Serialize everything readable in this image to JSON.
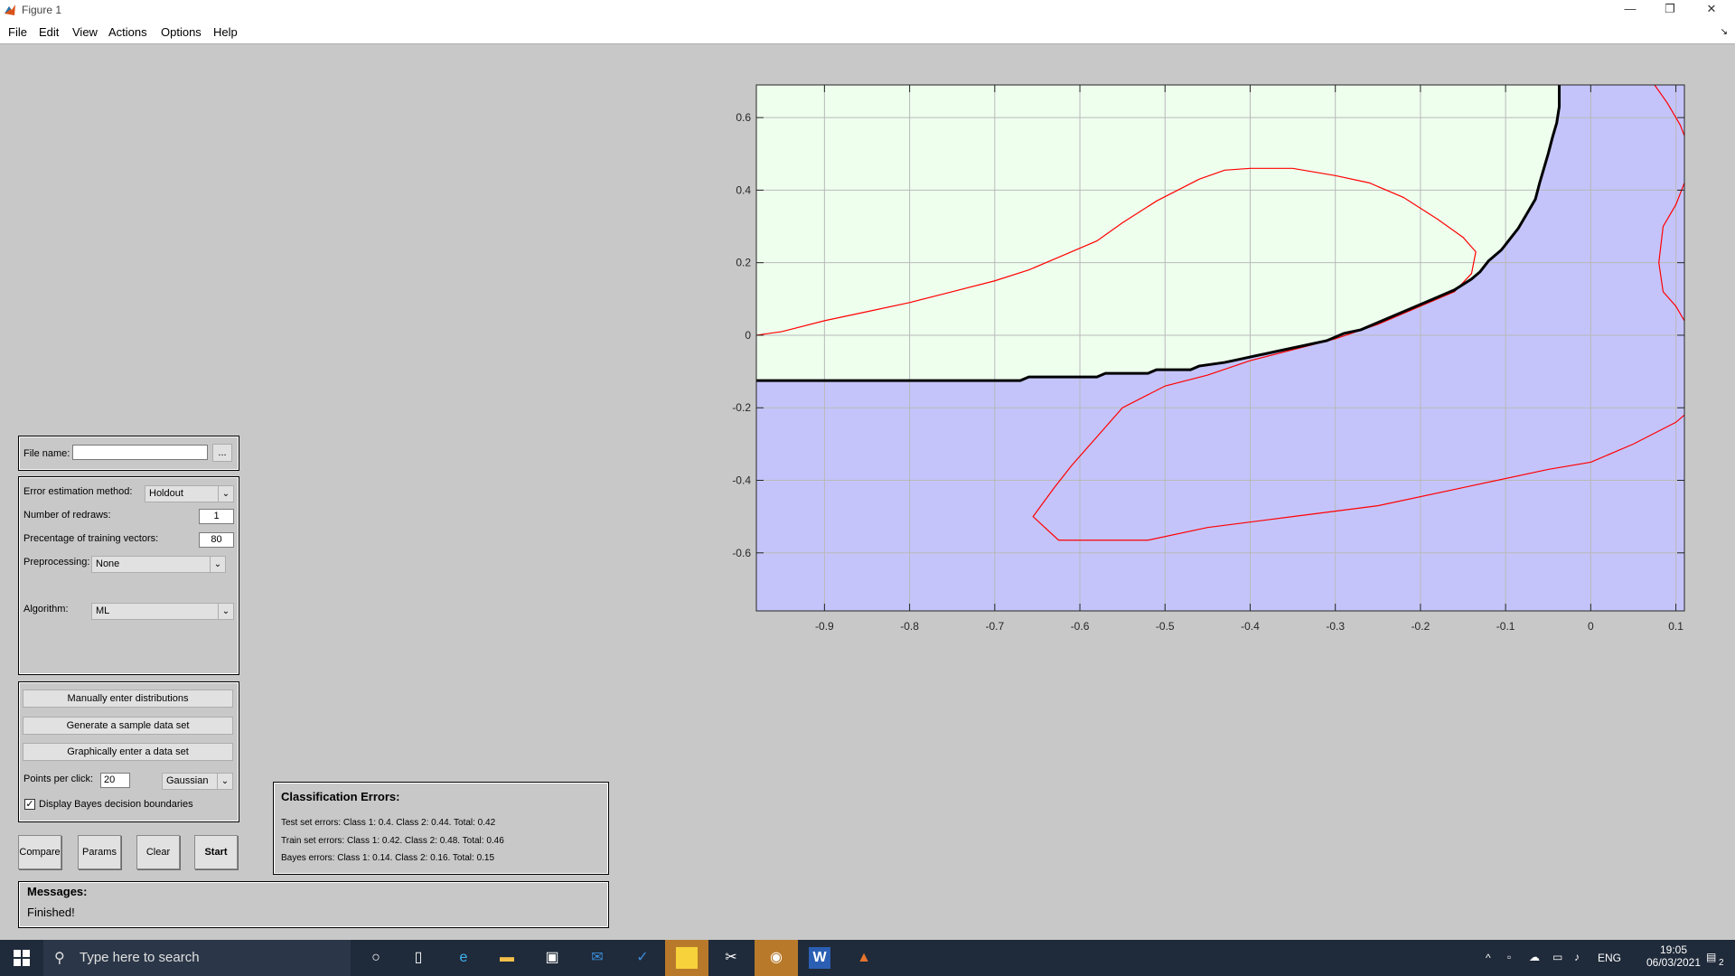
{
  "window": {
    "title": "Figure 1",
    "minimize": "—",
    "restore": "❐",
    "close": "✕"
  },
  "menu": {
    "items": [
      "File",
      "Edit",
      "View",
      "Actions",
      "Options",
      "Help"
    ],
    "grip": "↘"
  },
  "file_panel": {
    "label": "File name:",
    "value": "",
    "browse": "..."
  },
  "settings": {
    "error_method_label": "Error estimation method:",
    "error_method_value": "Holdout",
    "redraws_label": "Number of redraws:",
    "redraws_value": "1",
    "training_label": "Precentage of training vectors:",
    "training_value": "80",
    "preprocessing_label": "Preprocessing:",
    "preprocessing_value": "None",
    "algorithm_label": "Algorithm:",
    "algorithm_value": "ML"
  },
  "data_panel": {
    "manual_btn": "Manually enter distributions",
    "generate_btn": "Generate a sample data set",
    "graphical_btn": "Graphically enter a data set",
    "points_label": "Points per click:",
    "points_value": "20",
    "dist_value": "Gaussian",
    "bayes_label": "Display Bayes decision boundaries",
    "bayes_checked": true
  },
  "action_buttons": {
    "compare": "Compare",
    "params": "Params",
    "clear": "Clear",
    "start": "Start"
  },
  "errors": {
    "title": "Classification Errors:",
    "test": "Test set errors: Class 1: 0.4. Class 2: 0.44. Total: 0.42",
    "train": "Train set errors: Class 1: 0.42. Class 2: 0.48. Total: 0.46",
    "bayes": "Bayes errors: Class 1: 0.14. Class 2: 0.16. Total: 0.15"
  },
  "messages": {
    "title": "Messages:",
    "text": "Finished!"
  },
  "chart_data": {
    "type": "decision-region plot",
    "xlim": [
      -0.98,
      0.11
    ],
    "ylim": [
      -0.76,
      0.69
    ],
    "xticks": [
      -0.9,
      -0.8,
      -0.7,
      -0.6,
      -0.5,
      -0.4,
      -0.3,
      -0.2,
      -0.1,
      0,
      0.1
    ],
    "yticks": [
      0.6,
      0.4,
      0.2,
      0,
      -0.2,
      -0.4,
      -0.6
    ],
    "xtick_labels": [
      "-0.9",
      "-0.8",
      "-0.7",
      "-0.6",
      "-0.5",
      "-0.4",
      "-0.3",
      "-0.2",
      "-0.1",
      "0",
      "0.1"
    ],
    "ytick_labels": [
      "0.6",
      "0.4",
      "0.2",
      "0",
      "-0.2",
      "-0.4",
      "-0.6"
    ],
    "grid": true,
    "region_colors": {
      "class1": "#eeffee",
      "class2": "#c4c4fb"
    },
    "decision_boundary": {
      "color": "#000000",
      "points": [
        [
          -0.98,
          -0.125
        ],
        [
          -0.67,
          -0.125
        ],
        [
          -0.66,
          -0.115
        ],
        [
          -0.58,
          -0.115
        ],
        [
          -0.57,
          -0.105
        ],
        [
          -0.52,
          -0.105
        ],
        [
          -0.51,
          -0.095
        ],
        [
          -0.47,
          -0.095
        ],
        [
          -0.46,
          -0.085
        ],
        [
          -0.43,
          -0.075
        ],
        [
          -0.41,
          -0.065
        ],
        [
          -0.39,
          -0.055
        ],
        [
          -0.37,
          -0.045
        ],
        [
          -0.35,
          -0.035
        ],
        [
          -0.33,
          -0.025
        ],
        [
          -0.31,
          -0.015
        ],
        [
          -0.29,
          0.005
        ],
        [
          -0.27,
          0.015
        ],
        [
          -0.25,
          0.035
        ],
        [
          -0.22,
          0.065
        ],
        [
          -0.19,
          0.095
        ],
        [
          -0.16,
          0.125
        ],
        [
          -0.14,
          0.155
        ],
        [
          -0.13,
          0.175
        ],
        [
          -0.12,
          0.205
        ],
        [
          -0.105,
          0.235
        ],
        [
          -0.095,
          0.265
        ],
        [
          -0.085,
          0.295
        ],
        [
          -0.075,
          0.335
        ],
        [
          -0.065,
          0.375
        ],
        [
          -0.06,
          0.42
        ],
        [
          -0.055,
          0.46
        ],
        [
          -0.05,
          0.5
        ],
        [
          -0.045,
          0.545
        ],
        [
          -0.04,
          0.585
        ],
        [
          -0.037,
          0.63
        ],
        [
          -0.037,
          0.69
        ]
      ]
    },
    "bayes_boundaries": {
      "color": "#ff0000",
      "curves": [
        [
          [
            -0.98,
            0.0
          ],
          [
            -0.95,
            0.01
          ],
          [
            -0.9,
            0.04
          ],
          [
            -0.85,
            0.065
          ],
          [
            -0.8,
            0.09
          ],
          [
            -0.75,
            0.12
          ],
          [
            -0.7,
            0.15
          ],
          [
            -0.66,
            0.18
          ],
          [
            -0.62,
            0.22
          ],
          [
            -0.58,
            0.26
          ],
          [
            -0.55,
            0.31
          ],
          [
            -0.51,
            0.37
          ],
          [
            -0.46,
            0.43
          ],
          [
            -0.43,
            0.455
          ],
          [
            -0.4,
            0.46
          ],
          [
            -0.35,
            0.46
          ],
          [
            -0.3,
            0.44
          ],
          [
            -0.26,
            0.42
          ],
          [
            -0.22,
            0.38
          ],
          [
            -0.18,
            0.32
          ],
          [
            -0.15,
            0.27
          ],
          [
            -0.135,
            0.23
          ],
          [
            -0.14,
            0.17
          ],
          [
            -0.16,
            0.12
          ],
          [
            -0.2,
            0.08
          ],
          [
            -0.25,
            0.03
          ],
          [
            -0.3,
            -0.01
          ],
          [
            -0.35,
            -0.04
          ],
          [
            -0.4,
            -0.07
          ],
          [
            -0.45,
            -0.11
          ],
          [
            -0.5,
            -0.14
          ],
          [
            -0.55,
            -0.2
          ],
          [
            -0.58,
            -0.28
          ],
          [
            -0.61,
            -0.36
          ],
          [
            -0.63,
            -0.42
          ],
          [
            -0.655,
            -0.5
          ],
          [
            -0.625,
            -0.565
          ],
          [
            -0.52,
            -0.565
          ],
          [
            -0.45,
            -0.53
          ],
          [
            -0.35,
            -0.5
          ],
          [
            -0.25,
            -0.47
          ],
          [
            -0.15,
            -0.42
          ],
          [
            -0.05,
            -0.37
          ],
          [
            0.0,
            -0.35
          ],
          [
            0.05,
            -0.3
          ],
          [
            0.1,
            -0.24
          ],
          [
            0.11,
            -0.22
          ]
        ],
        [
          [
            0.075,
            0.69
          ],
          [
            0.09,
            0.64
          ],
          [
            0.105,
            0.58
          ],
          [
            0.11,
            0.55
          ]
        ],
        [
          [
            0.11,
            0.42
          ],
          [
            0.1,
            0.36
          ],
          [
            0.085,
            0.3
          ],
          [
            0.08,
            0.2
          ],
          [
            0.085,
            0.12
          ],
          [
            0.1,
            0.08
          ],
          [
            0.11,
            0.04
          ]
        ]
      ]
    }
  },
  "taskbar": {
    "search_placeholder": "Type here to search",
    "lang": "ENG",
    "time": "19:05",
    "date": "06/03/2021",
    "notif_count": "2"
  }
}
